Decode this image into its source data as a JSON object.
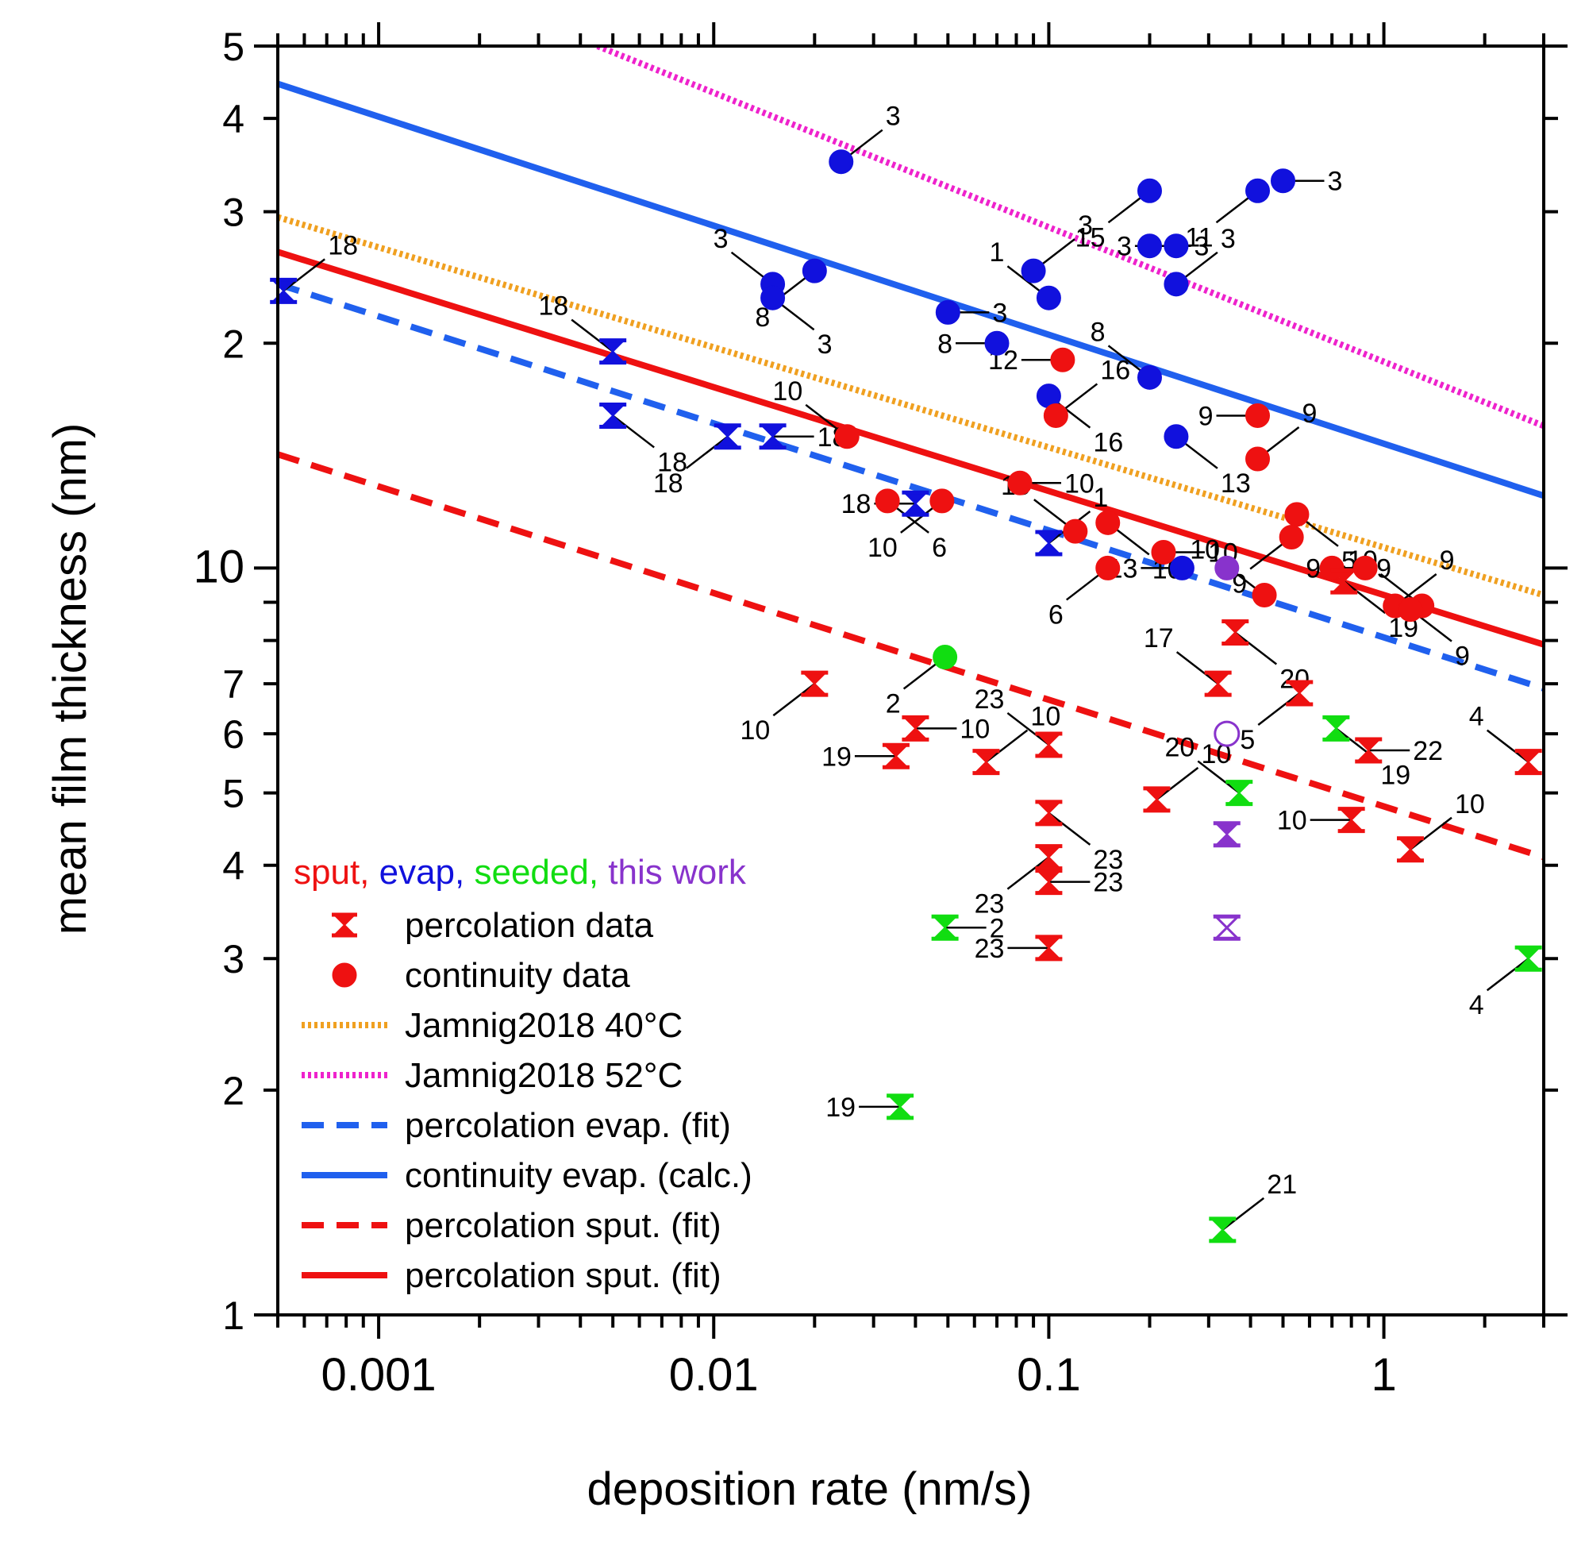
{
  "chart_data": {
    "type": "scatter",
    "xlabel": "deposition rate (nm/s)",
    "ylabel": "mean film thickness (nm)",
    "xscale": "log",
    "yscale": "log",
    "xlim": [
      0.0005,
      3
    ],
    "ylim": [
      1,
      50
    ],
    "x_tick_labels": [
      {
        "v": 0.001,
        "t": "0.001"
      },
      {
        "v": 0.01,
        "t": "0.01"
      },
      {
        "v": 0.1,
        "t": "0.1"
      },
      {
        "v": 1,
        "t": "1"
      }
    ],
    "y_tick_labels": [
      {
        "v": 1,
        "t": "1"
      },
      {
        "v": 2,
        "t": "2"
      },
      {
        "v": 3,
        "t": "3"
      },
      {
        "v": 4,
        "t": "4"
      },
      {
        "v": 5,
        "t": "5"
      },
      {
        "v": 6,
        "t": "6"
      },
      {
        "v": 7,
        "t": "7"
      },
      {
        "v": 10,
        "t": "10"
      },
      {
        "v": 20,
        "t": "2"
      },
      {
        "v": 30,
        "t": "3"
      },
      {
        "v": 40,
        "t": "4"
      },
      {
        "v": 50,
        "t": "5"
      }
    ],
    "legend": {
      "position": "lower-left",
      "header": [
        {
          "text": "sput,",
          "color": "#ee1111"
        },
        {
          "text": "evap,",
          "color": "#1111dd"
        },
        {
          "text": "seeded,",
          "color": "#11dd11"
        },
        {
          "text": "this work",
          "color": "#8833cc"
        }
      ],
      "entries": [
        {
          "label": "percolation data",
          "kind": "hourglass",
          "color": "#ee1111"
        },
        {
          "label": "continuity data",
          "kind": "circle",
          "color": "#ee1111"
        },
        {
          "label": "Jamnig2018 40°C",
          "kind": "dotted",
          "color": "#f0a020"
        },
        {
          "label": "Jamnig2018 52°C",
          "kind": "dotted",
          "color": "#ee22cc"
        },
        {
          "label": "percolation evap. (fit)",
          "kind": "dashed",
          "color": "#2060ee"
        },
        {
          "label": "continuity evap. (calc.)",
          "kind": "solid",
          "color": "#2060ee"
        },
        {
          "label": "percolation sput. (fit)",
          "kind": "dashed",
          "color": "#ee1111"
        },
        {
          "label": "percolation sput. (fit)",
          "kind": "solid",
          "color": "#ee1111"
        }
      ]
    },
    "lines": [
      {
        "name": "Jamnig2018 40°C",
        "style": "dotted",
        "color": "#f0a020",
        "points": [
          [
            0.0005,
            29.5
          ],
          [
            3,
            9.2
          ]
        ]
      },
      {
        "name": "Jamnig2018 52°C",
        "style": "dotted",
        "color": "#ee22cc",
        "points": [
          [
            0.0045,
            50
          ],
          [
            3,
            15.5
          ]
        ]
      },
      {
        "name": "percolation evap. (fit)",
        "style": "dashed",
        "color": "#2060ee",
        "points": [
          [
            0.0005,
            24
          ],
          [
            3,
            6.9
          ]
        ]
      },
      {
        "name": "continuity evap. (calc.)",
        "style": "solid",
        "color": "#2060ee",
        "points": [
          [
            0.0005,
            44.5
          ],
          [
            3,
            12.5
          ]
        ]
      },
      {
        "name": "percolation sput. (fit)",
        "style": "dashed",
        "color": "#ee1111",
        "points": [
          [
            0.0005,
            14.2
          ],
          [
            3,
            4.1
          ]
        ]
      },
      {
        "name": "percolation sput. (fit)",
        "style": "solid",
        "color": "#ee1111",
        "points": [
          [
            0.0005,
            26.5
          ],
          [
            3,
            7.9
          ]
        ]
      }
    ],
    "series": [
      {
        "name": "evap continuity",
        "marker": "circle",
        "color": "#1111dd",
        "points": [
          {
            "x": 0.024,
            "y": 35,
            "ref": "3"
          },
          {
            "x": 0.015,
            "y": 24,
            "ref": "3"
          },
          {
            "x": 0.015,
            "y": 23,
            "ref": "3"
          },
          {
            "x": 0.02,
            "y": 25,
            "ref": "8"
          },
          {
            "x": 0.05,
            "y": 22,
            "ref": "3"
          },
          {
            "x": 0.07,
            "y": 20,
            "ref": "8"
          },
          {
            "x": 0.09,
            "y": 25,
            "ref": "3"
          },
          {
            "x": 0.1,
            "y": 23,
            "ref": "1"
          },
          {
            "x": 0.1,
            "y": 17,
            "ref": "16"
          },
          {
            "x": 0.2,
            "y": 32,
            "ref": "15"
          },
          {
            "x": 0.2,
            "y": 27,
            "ref": "3"
          },
          {
            "x": 0.24,
            "y": 27,
            "ref": "3"
          },
          {
            "x": 0.24,
            "y": 24,
            "ref": "3"
          },
          {
            "x": 0.2,
            "y": 18,
            "ref": "8"
          },
          {
            "x": 0.24,
            "y": 15,
            "ref": "13"
          },
          {
            "x": 0.42,
            "y": 32,
            "ref": "11"
          },
          {
            "x": 0.5,
            "y": 33,
            "ref": "3"
          },
          {
            "x": 0.25,
            "y": 10,
            "ref": "13"
          }
        ]
      },
      {
        "name": "evap percolation",
        "marker": "hourglass",
        "color": "#1111dd",
        "points": [
          {
            "x": 0.00052,
            "y": 23.5,
            "ref": "18"
          },
          {
            "x": 0.005,
            "y": 19.5,
            "ref": "18"
          },
          {
            "x": 0.005,
            "y": 16,
            "ref": "18"
          },
          {
            "x": 0.011,
            "y": 15,
            "ref": "18"
          },
          {
            "x": 0.015,
            "y": 15,
            "ref": "18"
          },
          {
            "x": 0.04,
            "y": 12.2,
            "ref": "18"
          },
          {
            "x": 0.1,
            "y": 10.8,
            "ref": "1"
          }
        ]
      },
      {
        "name": "sput continuity",
        "marker": "circle",
        "color": "#ee1111",
        "points": [
          {
            "x": 0.025,
            "y": 15,
            "ref": "10"
          },
          {
            "x": 0.033,
            "y": 12.3,
            "ref": "6"
          },
          {
            "x": 0.048,
            "y": 12.3,
            "ref": "10"
          },
          {
            "x": 0.082,
            "y": 13,
            "ref": "10"
          },
          {
            "x": 0.11,
            "y": 19,
            "ref": "12"
          },
          {
            "x": 0.105,
            "y": 16,
            "ref": "16"
          },
          {
            "x": 0.12,
            "y": 11.2,
            "ref": "10"
          },
          {
            "x": 0.15,
            "y": 11.5,
            "ref": "10"
          },
          {
            "x": 0.15,
            "y": 10,
            "ref": "6"
          },
          {
            "x": 0.22,
            "y": 10.5,
            "ref": "10"
          },
          {
            "x": 0.42,
            "y": 16,
            "ref": "9"
          },
          {
            "x": 0.42,
            "y": 14,
            "ref": "9"
          },
          {
            "x": 0.44,
            "y": 9.2,
            "ref": "10"
          },
          {
            "x": 0.55,
            "y": 11.8,
            "ref": "5"
          },
          {
            "x": 0.53,
            "y": 11,
            "ref": "9"
          },
          {
            "x": 0.7,
            "y": 10,
            "ref": "9"
          },
          {
            "x": 0.88,
            "y": 10,
            "ref": "9"
          },
          {
            "x": 1.08,
            "y": 8.9,
            "ref": "9"
          },
          {
            "x": 1.3,
            "y": 8.9,
            "ref": "10"
          },
          {
            "x": 1.2,
            "y": 8.8,
            "ref": "9"
          }
        ]
      },
      {
        "name": "sput percolation",
        "marker": "hourglass",
        "color": "#ee1111",
        "points": [
          {
            "x": 0.02,
            "y": 7,
            "ref": "10"
          },
          {
            "x": 0.04,
            "y": 6.1,
            "ref": "10"
          },
          {
            "x": 0.035,
            "y": 5.6,
            "ref": "19"
          },
          {
            "x": 0.065,
            "y": 5.5,
            "ref": "10"
          },
          {
            "x": 0.1,
            "y": 5.8,
            "ref": "23"
          },
          {
            "x": 0.1,
            "y": 4.7,
            "ref": "23"
          },
          {
            "x": 0.1,
            "y": 4.1,
            "ref": "23"
          },
          {
            "x": 0.1,
            "y": 3.8,
            "ref": "23"
          },
          {
            "x": 0.1,
            "y": 3.1,
            "ref": "23"
          },
          {
            "x": 0.21,
            "y": 4.9,
            "ref": "10"
          },
          {
            "x": 0.32,
            "y": 7,
            "ref": "17"
          },
          {
            "x": 0.36,
            "y": 8.2,
            "ref": "20"
          },
          {
            "x": 0.56,
            "y": 6.8,
            "ref": "5"
          },
          {
            "x": 0.9,
            "y": 5.7,
            "ref": "22"
          },
          {
            "x": 0.8,
            "y": 4.6,
            "ref": "10"
          },
          {
            "x": 1.2,
            "y": 4.2,
            "ref": "10"
          },
          {
            "x": 2.7,
            "y": 5.5,
            "ref": "4"
          },
          {
            "x": 0.76,
            "y": 9.6,
            "ref": "19"
          }
        ]
      },
      {
        "name": "seeded",
        "marker": "mixed",
        "color": "#11dd11",
        "points": [
          {
            "x": 0.049,
            "y": 7.6,
            "ref": "2",
            "marker": "circle"
          },
          {
            "x": 0.049,
            "y": 3.3,
            "ref": "2",
            "marker": "hourglass"
          },
          {
            "x": 0.036,
            "y": 1.9,
            "ref": "19",
            "marker": "hourglass"
          },
          {
            "x": 0.33,
            "y": 1.3,
            "ref": "21",
            "marker": "hourglass"
          },
          {
            "x": 0.37,
            "y": 5,
            "ref": "20",
            "marker": "hourglass"
          },
          {
            "x": 0.72,
            "y": 6.1,
            "ref": "19",
            "marker": "hourglass"
          },
          {
            "x": 2.7,
            "y": 3,
            "ref": "4",
            "marker": "hourglass"
          }
        ]
      },
      {
        "name": "this work",
        "marker": "mixed",
        "color": "#8833cc",
        "points": [
          {
            "x": 0.34,
            "y": 10,
            "ref": "",
            "marker": "circle"
          },
          {
            "x": 0.34,
            "y": 6,
            "ref": "",
            "marker": "open-circle"
          },
          {
            "x": 0.34,
            "y": 4.4,
            "ref": "",
            "marker": "hourglass"
          },
          {
            "x": 0.34,
            "y": 3.3,
            "ref": "",
            "marker": "open-hourglass"
          }
        ]
      }
    ]
  }
}
